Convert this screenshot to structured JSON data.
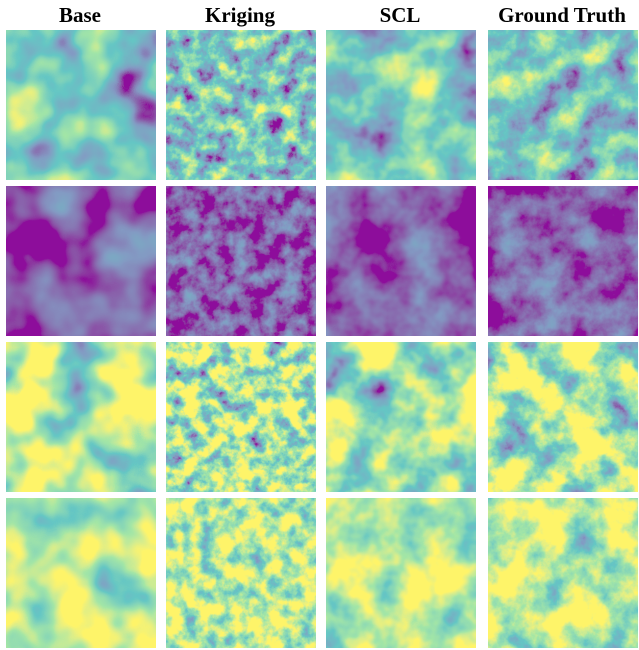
{
  "columns": [
    "Base",
    "Kriging",
    "SCL",
    "Ground Truth"
  ]
}
